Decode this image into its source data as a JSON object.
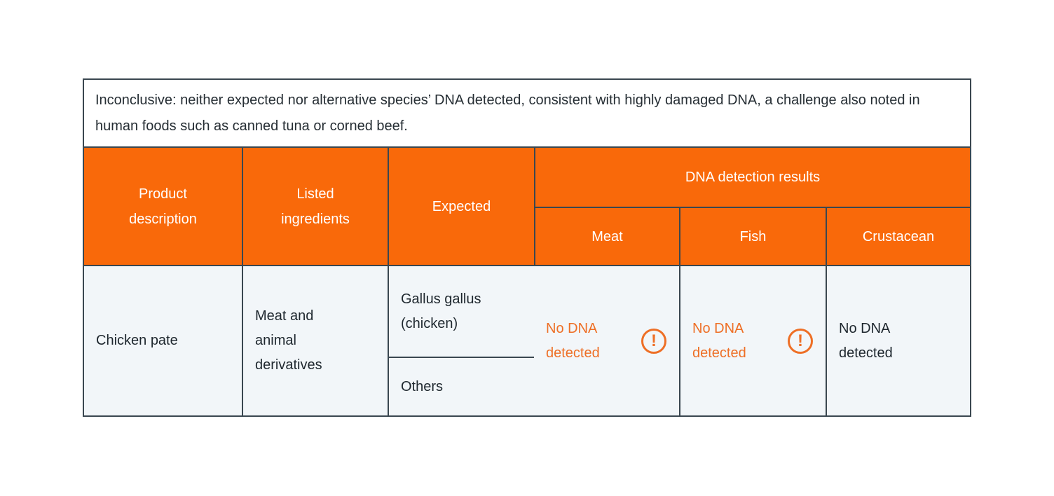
{
  "note": {
    "text": "Inconclusive: neither expected nor alternative species’ DNA detected, consistent with highly damaged DNA, a challenge also noted in human foods such as canned tuna or corned beef."
  },
  "table": {
    "header": {
      "product": "Product description",
      "ingredients": "Listed ingredients",
      "expected": "Expected",
      "dna_group": "DNA detection results",
      "meat": "Meat",
      "fish": "Fish",
      "crustacean": "Crustacean"
    },
    "row": {
      "product": "Chicken pate",
      "ingredients": "Meat and animal derivatives",
      "expected": [
        "Gallus gallus (chicken)",
        "Others"
      ],
      "results": {
        "meat": {
          "text": "No DNA detected",
          "flagged": true
        },
        "fish": {
          "text": "No DNA detected",
          "flagged": true
        },
        "crustacean": {
          "text": "No DNA detected",
          "flagged": false
        }
      }
    }
  },
  "icons": {
    "warning": "!"
  },
  "colors": {
    "header_orange": "#F9690A",
    "alert_orange": "#EE6F26",
    "border_dark": "#3A4750",
    "cell_background": "#F2F6F9",
    "header_text": "#FFFFFF",
    "body_text": "#1E272E"
  }
}
